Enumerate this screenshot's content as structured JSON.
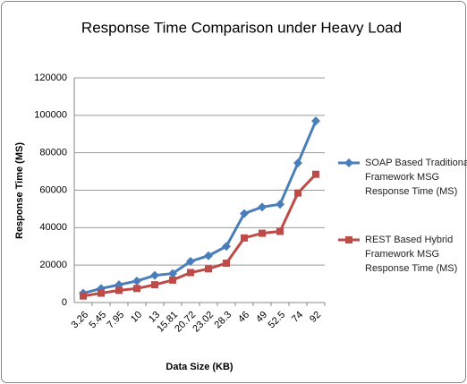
{
  "chart_data": {
    "type": "line",
    "title": "Response Time Comparison under Heavy Load",
    "x_label": "Data Size (KB)",
    "y_label": "Response Time (MS)",
    "categories": [
      "3.26",
      "5.45",
      "7.95",
      "10",
      "13",
      "15.81",
      "20.72",
      "23.02",
      "28.3",
      "46",
      "49",
      "52.5",
      "74",
      "92"
    ],
    "series": [
      {
        "name": "SOAP Based Traditional Framework MSG Response Time (MS)",
        "color": "#4a7ebb",
        "marker": "diamond",
        "values": [
          5000,
          7500,
          9500,
          11500,
          14500,
          15500,
          22000,
          25000,
          30000,
          47500,
          51000,
          52500,
          74500,
          97000
        ]
      },
      {
        "name": "REST Based Hybrid Framework MSG Response Time (MS)",
        "color": "#be4b48",
        "marker": "square",
        "values": [
          3500,
          5000,
          6500,
          7500,
          9500,
          12000,
          16000,
          18000,
          21000,
          34500,
          37000,
          38000,
          58500,
          68500
        ]
      }
    ],
    "ylim": [
      0,
      120000
    ],
    "yticks": [
      0,
      20000,
      40000,
      60000,
      80000,
      100000,
      120000
    ],
    "grid": true,
    "legend": "right"
  }
}
